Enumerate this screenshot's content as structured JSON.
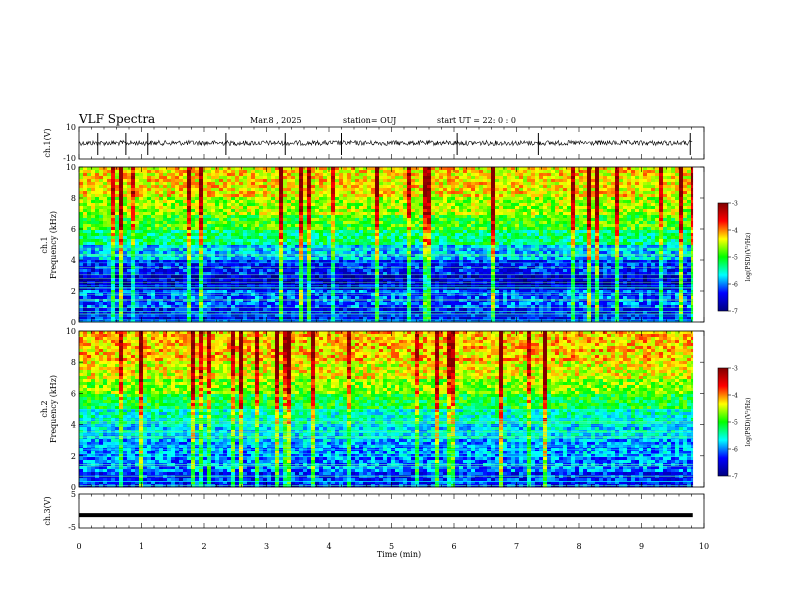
{
  "header": {
    "title": "VLF Spectra",
    "date": "Mar.8 , 2025",
    "station": "station= OUJ",
    "start": "start UT = 22: 0 : 0"
  },
  "colorbar": {
    "label": "log(PSD)(V²/Hz)",
    "ticks": [
      "-3",
      "-4",
      "-5",
      "-6",
      "-7"
    ],
    "colors": [
      "#7f0000",
      "#ff0000",
      "#ffff00",
      "#00ff00",
      "#00ffff",
      "#0000ff",
      "#00007f"
    ]
  },
  "chart_data": [
    {
      "type": "line",
      "name": "ch.1 waveform",
      "ylabel": "ch.1(V)",
      "ylim": [
        -10,
        10
      ],
      "ytick_labels": [
        "10",
        "-10"
      ],
      "baseline_value": 0,
      "spike_times_min": [
        0.3,
        0.75,
        1.1,
        2.35,
        3.3,
        4.2,
        6.05,
        7.35,
        9.78
      ]
    },
    {
      "type": "heatmap",
      "name": "ch.1 spectrogram",
      "ylabel": "ch.1\nFrequency (kHz)",
      "ylim": [
        0,
        10
      ],
      "ytick_labels": [
        "10",
        "8",
        "6",
        "4",
        "2",
        "0"
      ],
      "color_scale": "log(PSD)(V²/Hz)",
      "color_range": [
        -7,
        -3
      ],
      "bands_khz": [
        {
          "from": 0,
          "to": 1,
          "level": -6.4
        },
        {
          "from": 1,
          "to": 2,
          "level": -6.1
        },
        {
          "from": 2,
          "to": 3,
          "level": -6.6
        },
        {
          "from": 3,
          "to": 4,
          "level": -6.3
        },
        {
          "from": 4,
          "to": 5,
          "level": -5.8
        },
        {
          "from": 5,
          "to": 6,
          "level": -5.3
        },
        {
          "from": 6,
          "to": 7,
          "level": -4.9
        },
        {
          "from": 7,
          "to": 8,
          "level": -4.6
        },
        {
          "from": 8,
          "to": 10,
          "level": -4.3
        }
      ]
    },
    {
      "type": "heatmap",
      "name": "ch.2 spectrogram",
      "ylabel": "ch.2\nFrequency (kHz)",
      "ylim": [
        0,
        10
      ],
      "ytick_labels": [
        "10",
        "8",
        "6",
        "4",
        "2",
        "0"
      ],
      "color_scale": "log(PSD)(V²/Hz)",
      "color_range": [
        -7,
        -3
      ],
      "bands_khz": [
        {
          "from": 0,
          "to": 1,
          "level": -6.3
        },
        {
          "from": 1,
          "to": 2,
          "level": -6.0
        },
        {
          "from": 2,
          "to": 3,
          "level": -5.9
        },
        {
          "from": 3,
          "to": 4,
          "level": -5.7
        },
        {
          "from": 4,
          "to": 5,
          "level": -5.5
        },
        {
          "from": 5,
          "to": 6,
          "level": -5.1
        },
        {
          "from": 6,
          "to": 7,
          "level": -4.7
        },
        {
          "from": 7,
          "to": 8,
          "level": -4.4
        },
        {
          "from": 8,
          "to": 10,
          "level": -4.2
        }
      ]
    },
    {
      "type": "line",
      "name": "ch.3 waveform",
      "ylabel": "ch.3(V)",
      "ylim": [
        -5,
        5
      ],
      "ytick_labels": [
        "5",
        "-5"
      ],
      "constant_value": -1.2
    }
  ],
  "xaxis": {
    "label": "Time (min)",
    "xlim": [
      0,
      10
    ],
    "ticks": [
      "0",
      "1",
      "2",
      "3",
      "4",
      "5",
      "6",
      "7",
      "8",
      "9",
      "10"
    ],
    "data_end_min": 9.82
  }
}
